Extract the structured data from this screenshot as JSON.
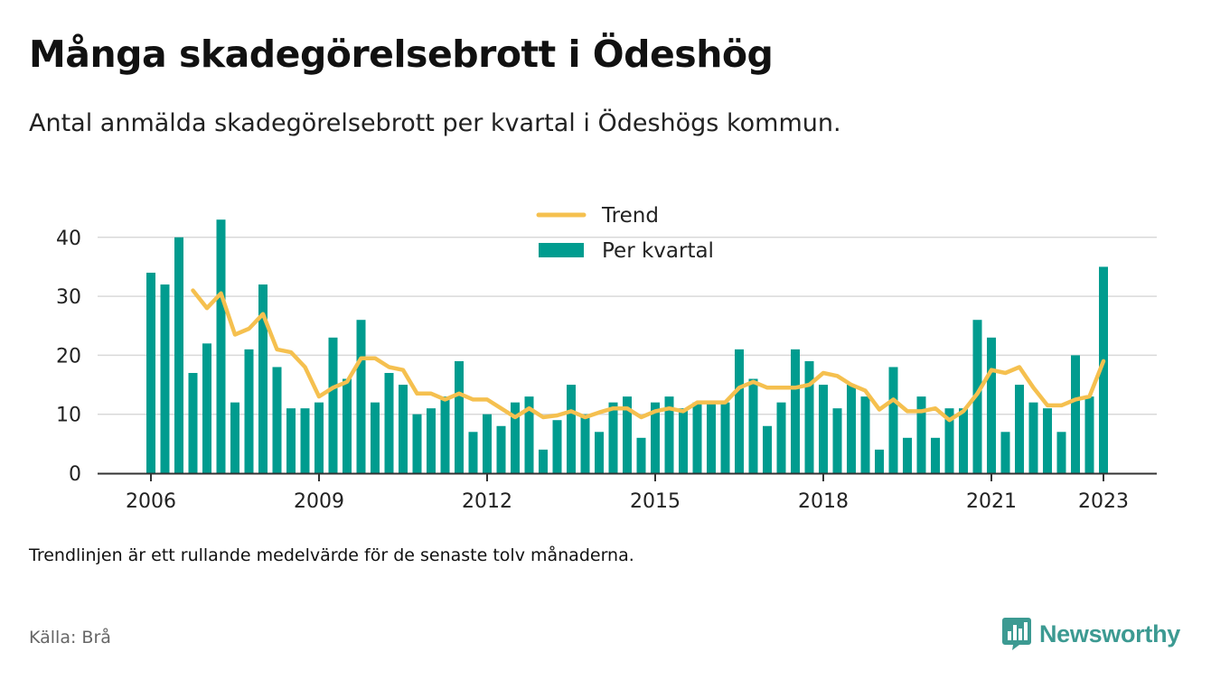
{
  "header": {
    "title": "Många skadegörelsebrott i Ödeshög",
    "subtitle": "Antal anmälda skadegörelsebrott per kvartal i Ödeshögs kommun."
  },
  "footer": {
    "note": "Trendlinjen är ett rullande medelvärde för de senaste tolv månaderna.",
    "source": "Källa: Brå",
    "brand": "Newsworthy",
    "brand_icon": "bar-chart-logo-icon"
  },
  "colors": {
    "bars": "#009c8f",
    "trend": "#f5c04f",
    "grid": "#d9d9d9",
    "axis": "#333333",
    "brand": "#3c9a92"
  },
  "chart_data": {
    "type": "bar",
    "x_tick_labels": [
      "2006",
      "2009",
      "2012",
      "2015",
      "2018",
      "2021",
      "2023"
    ],
    "x_tick_years": [
      2006,
      2009,
      2012,
      2015,
      2018,
      2021,
      2023
    ],
    "y_tick_labels": [
      "0",
      "10",
      "20",
      "30",
      "40"
    ],
    "ylim": [
      0,
      45
    ],
    "grid": true,
    "legend_position": "top-center",
    "legend": [
      {
        "label": "Trend",
        "kind": "line",
        "color": "#f5c04f"
      },
      {
        "label": "Per kvartal",
        "kind": "bar",
        "color": "#009c8f"
      }
    ],
    "series": [
      {
        "name": "Per kvartal",
        "kind": "bar",
        "start_year": 2006,
        "start_quarter": 1,
        "values": [
          34,
          32,
          40,
          17,
          22,
          43,
          12,
          21,
          32,
          18,
          11,
          11,
          12,
          23,
          16,
          26,
          12,
          17,
          15,
          10,
          11,
          13,
          19,
          7,
          10,
          8,
          12,
          13,
          4,
          9,
          15,
          10,
          7,
          12,
          13,
          6,
          12,
          13,
          11,
          12,
          12,
          12,
          21,
          16,
          8,
          12,
          21,
          19,
          15,
          11,
          15,
          13,
          4,
          18,
          6,
          13,
          6,
          11,
          11,
          26,
          23,
          7,
          15,
          12,
          11,
          7,
          20,
          13,
          35
        ]
      },
      {
        "name": "Trend",
        "kind": "line",
        "start_year": 2006,
        "start_quarter": 4,
        "values": [
          31,
          28,
          30.5,
          23.5,
          24.5,
          27,
          21,
          20.5,
          18,
          13,
          14.5,
          15.5,
          19.5,
          19.5,
          18,
          17.5,
          13.5,
          13.5,
          12.5,
          13.5,
          12.5,
          12.5,
          11,
          9.5,
          11,
          9.5,
          9.8,
          10.5,
          9.5,
          10.3,
          11,
          11,
          9.5,
          10.5,
          11,
          10.5,
          12,
          12,
          12,
          14.5,
          15.5,
          14.5,
          14.5,
          14.5,
          15,
          17,
          16.5,
          15,
          14,
          10.8,
          12.5,
          10.5,
          10.5,
          11,
          9,
          10.5,
          13.5,
          17.5,
          17,
          18,
          14.5,
          11.5,
          11.5,
          12.5,
          13,
          19
        ]
      }
    ]
  }
}
